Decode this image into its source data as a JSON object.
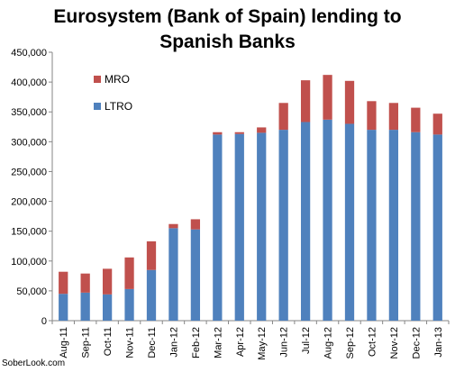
{
  "chart_data": {
    "type": "bar",
    "stacked": true,
    "title_lines": [
      "Eurosystem (Bank of Spain) lending to",
      "Spanish Banks"
    ],
    "categories": [
      "Aug-11",
      "Sep-11",
      "Oct-11",
      "Nov-11",
      "Dec-11",
      "Jan-12",
      "Feb-12",
      "Mar-12",
      "Apr-12",
      "May-12",
      "Jun-12",
      "Jul-12",
      "Aug-12",
      "Sep-12",
      "Oct-12",
      "Nov-12",
      "Dec-12",
      "Jan-13"
    ],
    "series": [
      {
        "name": "LTRO",
        "color": "#4f81bd",
        "values": [
          45000,
          47000,
          44000,
          53000,
          85000,
          155000,
          153000,
          312000,
          313000,
          315000,
          320000,
          333000,
          337000,
          330000,
          320000,
          320000,
          316000,
          312000
        ]
      },
      {
        "name": "MRO",
        "color": "#c0504d",
        "values": [
          37000,
          32000,
          43000,
          53000,
          48000,
          7000,
          17000,
          4000,
          3000,
          9000,
          45000,
          70000,
          75000,
          72000,
          48000,
          45000,
          41000,
          35000
        ]
      }
    ],
    "ylim": [
      0,
      450000
    ],
    "y_ticks": [
      0,
      50000,
      100000,
      150000,
      200000,
      250000,
      300000,
      350000,
      400000,
      450000
    ],
    "y_tick_labels": [
      "0",
      "50,000",
      "100,000",
      "150,000",
      "200,000",
      "250,000",
      "300,000",
      "350,000",
      "400,000",
      "450,000"
    ],
    "legend_order": [
      "MRO",
      "LTRO"
    ],
    "legend_position": "top-left",
    "grid": false
  },
  "watermark": "SoberLook.com"
}
